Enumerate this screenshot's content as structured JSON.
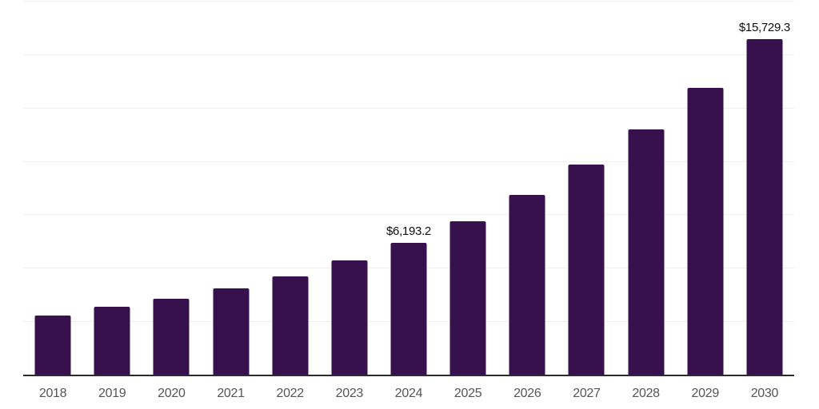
{
  "chart_data": {
    "type": "bar",
    "title": "",
    "xlabel": "",
    "ylabel": "",
    "categories": [
      "2018",
      "2019",
      "2020",
      "2021",
      "2022",
      "2023",
      "2024",
      "2025",
      "2026",
      "2027",
      "2028",
      "2029",
      "2030"
    ],
    "values": [
      2820,
      3230,
      3600,
      4070,
      4630,
      5370,
      6193.2,
      7233.9,
      8449.4,
      9869.3,
      11527.9,
      13465.3,
      15729.3
    ],
    "point_labels": [
      {
        "index": 6,
        "text": "$6,193.2"
      },
      {
        "index": 12,
        "text": "$15,729.3"
      }
    ],
    "ylim": [
      0,
      17500
    ],
    "gridline_step": 2500,
    "grid": true,
    "legend": false,
    "y_tick_labels_shown": false,
    "colors": {
      "bar": "#36114E",
      "gridline": "#efefef",
      "axis_line": "#2b2b2b",
      "x_label_text": "#555555",
      "value_label_text": "#0d0d0d",
      "background": "#ffffff"
    }
  }
}
